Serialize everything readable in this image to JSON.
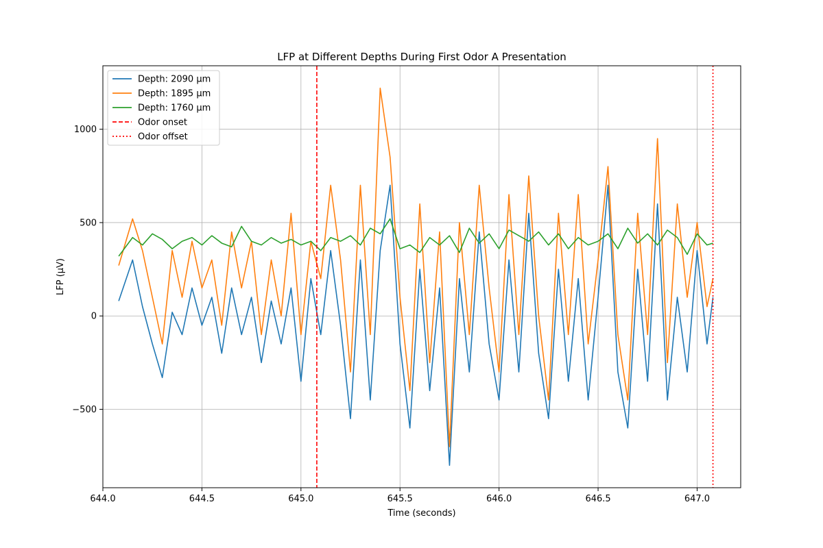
{
  "chart_data": {
    "type": "line",
    "title": "LFP at Different Depths During First Odor A Presentation",
    "xlabel": "Time (seconds)",
    "ylabel": "LFP (μV)",
    "xlim": [
      644.0,
      647.22
    ],
    "ylim": [
      -920,
      1340
    ],
    "xticks": [
      644.0,
      644.5,
      645.0,
      645.5,
      646.0,
      646.5,
      647.0
    ],
    "xtick_labels": [
      "644.0",
      "644.5",
      "645.0",
      "645.5",
      "646.0",
      "646.5",
      "647.0"
    ],
    "yticks": [
      -500,
      0,
      500,
      1000
    ],
    "ytick_labels": [
      "−500",
      "0",
      "500",
      "1000"
    ],
    "grid": true,
    "legend_position": "top-left",
    "time_range": [
      644.08,
      647.08
    ],
    "series": [
      {
        "name": "Depth: 2090 μm",
        "color": "#1f77b4",
        "x": [
          644.08,
          644.15,
          644.2,
          644.25,
          644.3,
          644.35,
          644.4,
          644.45,
          644.5,
          644.55,
          644.6,
          644.65,
          644.7,
          644.75,
          644.8,
          644.85,
          644.9,
          644.95,
          645.0,
          645.05,
          645.1,
          645.15,
          645.2,
          645.25,
          645.3,
          645.35,
          645.4,
          645.45,
          645.5,
          645.55,
          645.6,
          645.65,
          645.7,
          645.75,
          645.8,
          645.85,
          645.9,
          645.95,
          646.0,
          646.05,
          646.1,
          646.15,
          646.2,
          646.25,
          646.3,
          646.35,
          646.4,
          646.45,
          646.5,
          646.55,
          646.6,
          646.65,
          646.7,
          646.75,
          646.8,
          646.85,
          646.9,
          646.95,
          647.0,
          647.05,
          647.08
        ],
        "y": [
          80,
          300,
          50,
          -150,
          -330,
          20,
          -100,
          150,
          -50,
          100,
          -200,
          150,
          -100,
          100,
          -250,
          80,
          -150,
          150,
          -350,
          200,
          -100,
          350,
          -50,
          -550,
          300,
          -450,
          350,
          700,
          -150,
          -600,
          250,
          -400,
          150,
          -800,
          200,
          -300,
          450,
          -150,
          -450,
          300,
          -300,
          550,
          -200,
          -550,
          250,
          -350,
          200,
          -450,
          100,
          700,
          -300,
          -600,
          250,
          -350,
          600,
          -450,
          100,
          -300,
          350,
          -150,
          100
        ]
      },
      {
        "name": "Depth: 1895 μm",
        "color": "#ff7f0e",
        "x": [
          644.08,
          644.15,
          644.2,
          644.25,
          644.3,
          644.35,
          644.4,
          644.45,
          644.5,
          644.55,
          644.6,
          644.65,
          644.7,
          644.75,
          644.8,
          644.85,
          644.9,
          644.95,
          645.0,
          645.05,
          645.1,
          645.15,
          645.2,
          645.25,
          645.3,
          645.35,
          645.4,
          645.45,
          645.5,
          645.55,
          645.6,
          645.65,
          645.7,
          645.75,
          645.8,
          645.85,
          645.9,
          645.95,
          646.0,
          646.05,
          646.1,
          646.15,
          646.2,
          646.25,
          646.3,
          646.35,
          646.4,
          646.45,
          646.5,
          646.55,
          646.6,
          646.65,
          646.7,
          646.75,
          646.8,
          646.85,
          646.9,
          646.95,
          647.0,
          647.05,
          647.08
        ],
        "y": [
          270,
          520,
          350,
          100,
          -150,
          350,
          100,
          400,
          150,
          300,
          -50,
          450,
          150,
          400,
          -100,
          300,
          0,
          550,
          -100,
          400,
          200,
          700,
          300,
          -300,
          700,
          -100,
          1220,
          850,
          100,
          -400,
          600,
          -250,
          450,
          -700,
          500,
          -100,
          700,
          150,
          -300,
          650,
          -100,
          750,
          0,
          -450,
          550,
          -100,
          650,
          -150,
          300,
          800,
          -100,
          -450,
          550,
          -100,
          950,
          -250,
          600,
          100,
          500,
          50,
          200
        ]
      },
      {
        "name": "Depth: 1760 μm",
        "color": "#2ca02c",
        "x": [
          644.08,
          644.15,
          644.2,
          644.25,
          644.3,
          644.35,
          644.4,
          644.45,
          644.5,
          644.55,
          644.6,
          644.65,
          644.7,
          644.75,
          644.8,
          644.85,
          644.9,
          644.95,
          645.0,
          645.05,
          645.1,
          645.15,
          645.2,
          645.25,
          645.3,
          645.35,
          645.4,
          645.45,
          645.5,
          645.55,
          645.6,
          645.65,
          645.7,
          645.75,
          645.8,
          645.85,
          645.9,
          645.95,
          646.0,
          646.05,
          646.1,
          646.15,
          646.2,
          646.25,
          646.3,
          646.35,
          646.4,
          646.45,
          646.5,
          646.55,
          646.6,
          646.65,
          646.7,
          646.75,
          646.8,
          646.85,
          646.9,
          646.95,
          647.0,
          647.05,
          647.08
        ],
        "y": [
          320,
          420,
          380,
          440,
          410,
          360,
          400,
          420,
          380,
          430,
          390,
          370,
          480,
          400,
          380,
          420,
          390,
          410,
          380,
          400,
          350,
          420,
          400,
          430,
          380,
          470,
          440,
          520,
          360,
          380,
          340,
          420,
          380,
          430,
          340,
          470,
          390,
          440,
          360,
          460,
          430,
          400,
          450,
          380,
          440,
          360,
          420,
          380,
          400,
          440,
          360,
          470,
          390,
          440,
          380,
          460,
          420,
          330,
          440,
          380,
          390
        ]
      }
    ],
    "vlines": [
      {
        "name": "Odor onset",
        "x": 645.08,
        "color": "#ff0000",
        "style": "dashed"
      },
      {
        "name": "Odor offset",
        "x": 647.08,
        "color": "#ff0000",
        "style": "dotted"
      }
    ]
  }
}
